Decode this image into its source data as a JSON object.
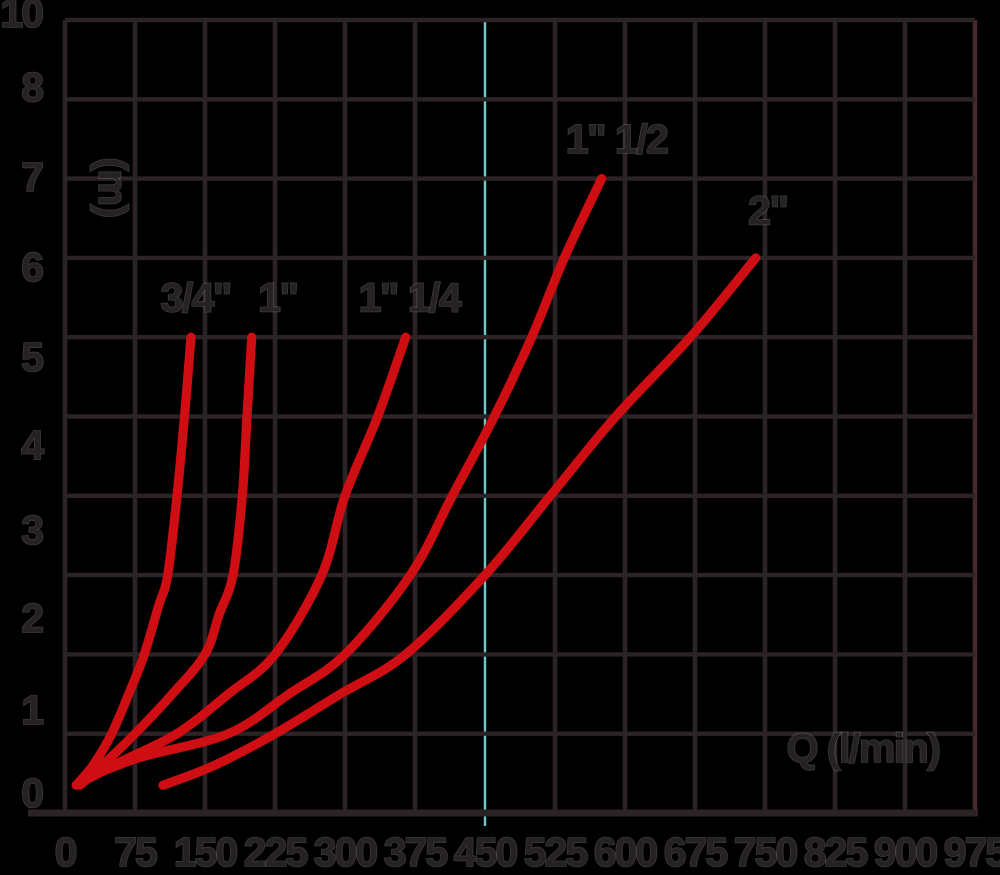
{
  "chart_data": {
    "type": "line",
    "title": "",
    "xlabel": "Q (l/min)",
    "ylabel": "(m)",
    "xlim": [
      0,
      975
    ],
    "ylim": [
      0,
      10
    ],
    "x_ticks": [
      0,
      75,
      150,
      225,
      300,
      375,
      450,
      525,
      600,
      675,
      750,
      825,
      900,
      975
    ],
    "y_tick_labels_top_to_bottom": [
      "10",
      "8",
      "7",
      "6",
      "5",
      "4",
      "3",
      "2",
      "1",
      "0"
    ],
    "grid": {
      "horizontal_lines": 11,
      "vertical_lines": 14,
      "highlighted_vertical_value": 450
    },
    "series": [
      {
        "name": "3/4\"",
        "label_at": [
          140,
          6.5
        ],
        "points": [
          [
            12,
            0.35
          ],
          [
            30,
            0.6
          ],
          [
            50,
            1
          ],
          [
            70,
            1.55
          ],
          [
            85,
            2
          ],
          [
            100,
            2.6
          ],
          [
            110,
            3
          ],
          [
            120,
            4
          ],
          [
            128,
            5
          ],
          [
            135,
            6
          ]
        ]
      },
      {
        "name": "1\"",
        "label_at": [
          228,
          6.5
        ],
        "points": [
          [
            16,
            0.35
          ],
          [
            40,
            0.6
          ],
          [
            75,
            1
          ],
          [
            115,
            1.5
          ],
          [
            150,
            2
          ],
          [
            165,
            2.5
          ],
          [
            180,
            3
          ],
          [
            190,
            4
          ],
          [
            195,
            5
          ],
          [
            200,
            6
          ]
        ]
      },
      {
        "name": "1\" 1/4",
        "label_at": [
          369,
          6.5
        ],
        "points": [
          [
            20,
            0.4
          ],
          [
            60,
            0.65
          ],
          [
            120,
            1
          ],
          [
            175,
            1.5
          ],
          [
            225,
            2
          ],
          [
            275,
            3
          ],
          [
            300,
            4
          ],
          [
            335,
            5
          ],
          [
            365,
            6
          ]
        ]
      },
      {
        "name": "1\" 1/2",
        "label_at": [
          591,
          8.5
        ],
        "points": [
          [
            25,
            0.45
          ],
          [
            80,
            0.7
          ],
          [
            175,
            1
          ],
          [
            240,
            1.5
          ],
          [
            300,
            2
          ],
          [
            370,
            3
          ],
          [
            415,
            4
          ],
          [
            460,
            5
          ],
          [
            500,
            6
          ],
          [
            535,
            7
          ],
          [
            575,
            8
          ]
        ]
      },
      {
        "name": "2\"",
        "label_at": [
          753,
          7.6
        ],
        "points": [
          [
            105,
            0.35
          ],
          [
            160,
            0.6
          ],
          [
            225,
            1
          ],
          [
            295,
            1.5
          ],
          [
            365,
            2
          ],
          [
            450,
            3
          ],
          [
            520,
            4
          ],
          [
            590,
            5
          ],
          [
            670,
            6
          ],
          [
            740,
            7
          ]
        ]
      }
    ],
    "colors": {
      "curve": "#ce0e13",
      "grid": "#2b2325",
      "grid_right_edge": "#46272a",
      "highlight": "#6fc8ca",
      "text": "#262122",
      "background": "#000000"
    }
  }
}
